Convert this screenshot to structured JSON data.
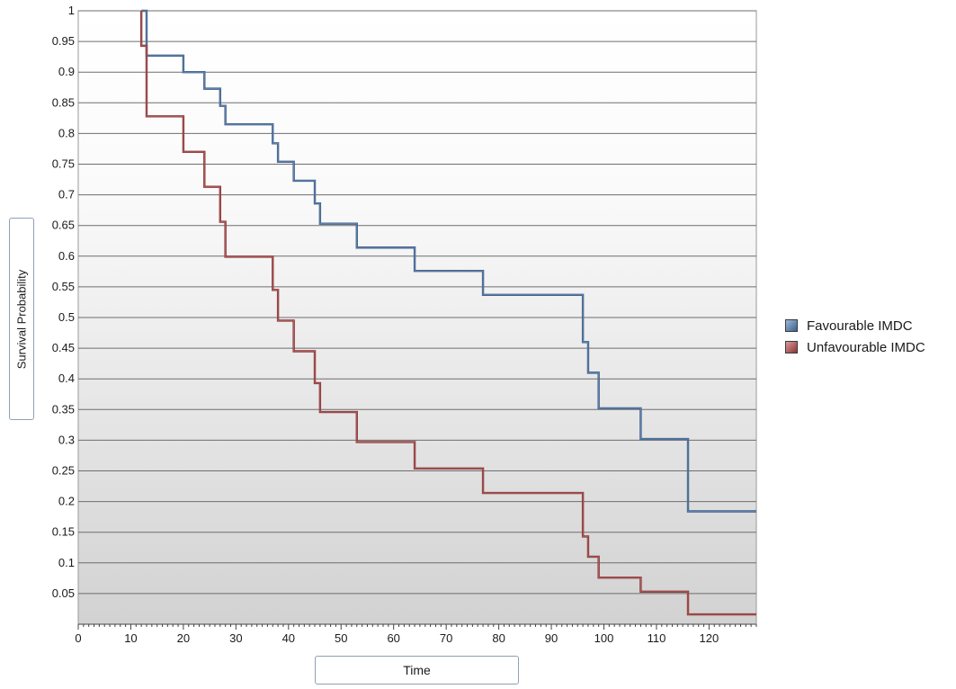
{
  "chart_data": {
    "type": "line",
    "subtype": "kaplan-meier-step",
    "xlabel": "Time",
    "ylabel": "Survival Probability",
    "xlim": [
      0,
      129
    ],
    "ylim": [
      0,
      1
    ],
    "xticks": [
      "0",
      "10",
      "20",
      "30",
      "40",
      "50",
      "60",
      "70",
      "80",
      "90",
      "100",
      "110",
      "120"
    ],
    "yticks": [
      "0.05",
      "0.1",
      "0.15",
      "0.2",
      "0.25",
      "0.3",
      "0.35",
      "0.4",
      "0.45",
      "0.5",
      "0.55",
      "0.6",
      "0.65",
      "0.7",
      "0.75",
      "0.8",
      "0.85",
      "0.9",
      "0.95",
      "1"
    ],
    "grid": "horizontal",
    "legend_position": "right",
    "series": [
      {
        "name": "Favourable IMDC",
        "color": "#3d5f8c",
        "x": [
          12,
          13,
          20,
          24,
          27,
          28,
          37,
          38,
          41,
          45,
          46,
          53,
          64,
          77,
          96,
          97,
          99,
          107,
          116,
          129
        ],
        "y": [
          1.0,
          0.927,
          0.9,
          0.873,
          0.845,
          0.815,
          0.784,
          0.754,
          0.723,
          0.686,
          0.653,
          0.614,
          0.576,
          0.537,
          0.46,
          0.41,
          0.352,
          0.302,
          0.184,
          0.184
        ]
      },
      {
        "name": "Unfavourable IMDC",
        "color": "#8c3535",
        "x": [
          12,
          13,
          20,
          24,
          27,
          28,
          37,
          38,
          41,
          45,
          46,
          53,
          64,
          77,
          96,
          97,
          99,
          107,
          116,
          129
        ],
        "y": [
          0.943,
          0.828,
          0.77,
          0.713,
          0.656,
          0.599,
          0.545,
          0.495,
          0.445,
          0.393,
          0.346,
          0.297,
          0.254,
          0.214,
          0.143,
          0.11,
          0.076,
          0.053,
          0.016,
          0.016
        ]
      }
    ]
  }
}
